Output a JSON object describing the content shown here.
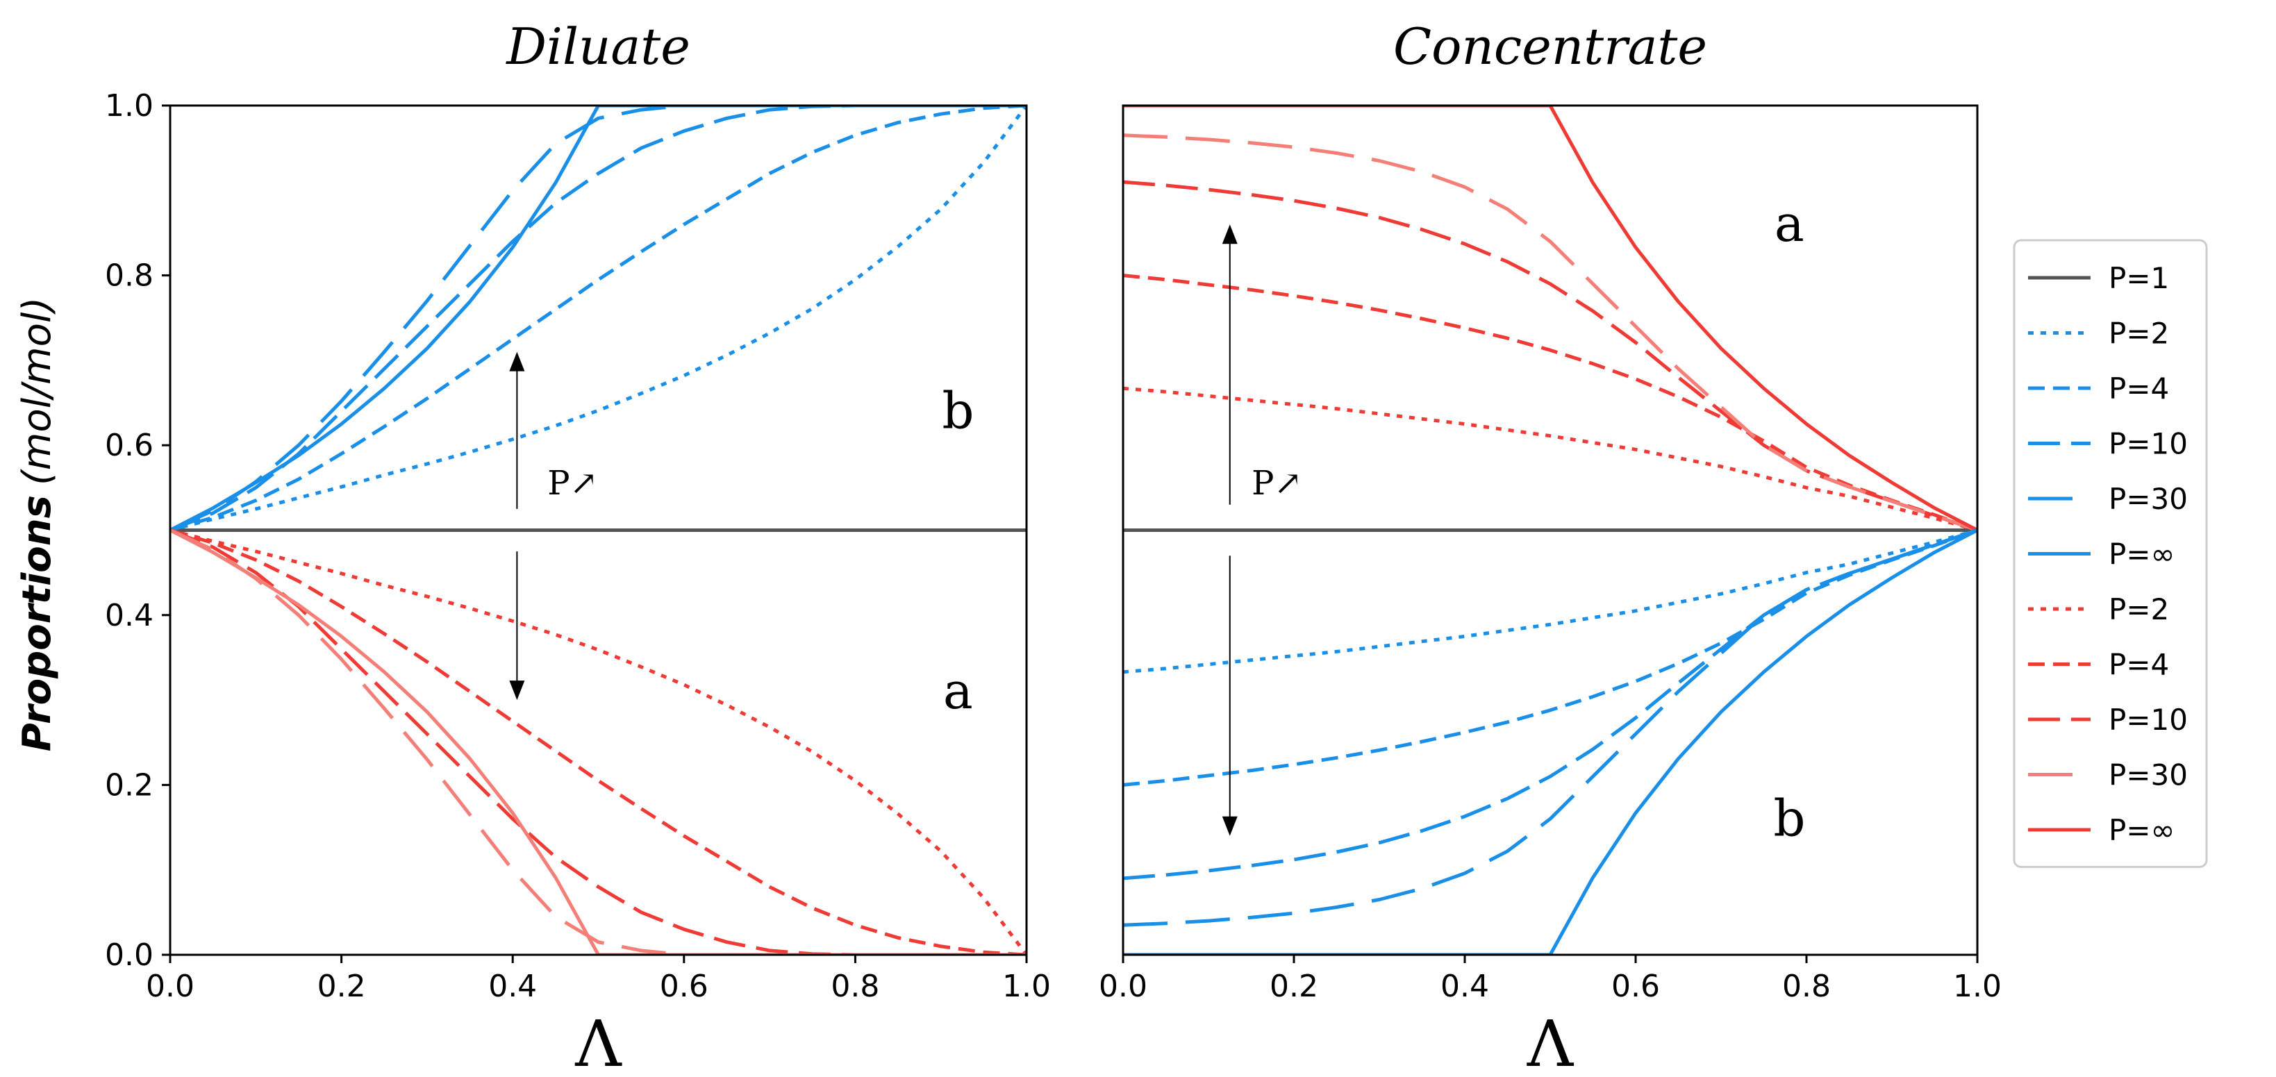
{
  "ylabel": {
    "main": "Proportions",
    "unit": "(mol/mol)"
  },
  "colors": {
    "black": "#555555",
    "blue": "#1a8fe8",
    "red": "#ee3b35",
    "redLight": "#f47f78",
    "axis": "#000000"
  },
  "chart_data": [
    {
      "type": "line",
      "id": "diluate",
      "title": "Diluate",
      "xlabel": "Λ",
      "ylabel": "Proportions (mol/mol)",
      "xlim": [
        0,
        1
      ],
      "ylim": [
        0,
        1
      ],
      "xticks": [
        "0.0",
        "0.2",
        "0.4",
        "0.6",
        "0.8",
        "1.0"
      ],
      "yticks": [
        "0.0",
        "0.2",
        "0.4",
        "0.6",
        "0.8",
        "1.0"
      ],
      "x": [
        0,
        0.05,
        0.1,
        0.15,
        0.2,
        0.25,
        0.3,
        0.35,
        0.4,
        0.45,
        0.5,
        0.55,
        0.6,
        0.65,
        0.7,
        0.75,
        0.8,
        0.85,
        0.9,
        0.95,
        1.0
      ],
      "series": [
        {
          "name": "P=1",
          "color": "black",
          "dash": "solid",
          "values": [
            0.5,
            0.5,
            0.5,
            0.5,
            0.5,
            0.5,
            0.5,
            0.5,
            0.5,
            0.5,
            0.5,
            0.5,
            0.5,
            0.5,
            0.5,
            0.5,
            0.5,
            0.5,
            0.5,
            0.5,
            0.5
          ]
        },
        {
          "name": "P=2 (b)",
          "color": "blue",
          "dash": "dot",
          "values": [
            0.5,
            0.513,
            0.525,
            0.538,
            0.551,
            0.565,
            0.578,
            0.592,
            0.607,
            0.623,
            0.641,
            0.661,
            0.682,
            0.706,
            0.732,
            0.761,
            0.795,
            0.834,
            0.878,
            0.933,
            1.0
          ]
        },
        {
          "name": "P=4 (b)",
          "color": "blue",
          "dash": "dash-short",
          "values": [
            0.5,
            0.515,
            0.535,
            0.56,
            0.59,
            0.622,
            0.655,
            0.69,
            0.725,
            0.76,
            0.795,
            0.828,
            0.86,
            0.89,
            0.92,
            0.945,
            0.965,
            0.98,
            0.99,
            0.997,
            1.0
          ]
        },
        {
          "name": "P=10 (b)",
          "color": "blue",
          "dash": "dash-long",
          "values": [
            0.5,
            0.52,
            0.55,
            0.59,
            0.64,
            0.69,
            0.74,
            0.79,
            0.84,
            0.885,
            0.92,
            0.95,
            0.97,
            0.985,
            0.995,
            0.999,
            1.0,
            1.0,
            1.0,
            1.0,
            1.0
          ]
        },
        {
          "name": "P=30 (b)",
          "color": "blue",
          "dash": "dash-xlong",
          "values": [
            0.5,
            0.523,
            0.557,
            0.6,
            0.652,
            0.71,
            0.77,
            0.835,
            0.9,
            0.955,
            0.985,
            0.995,
            1.0,
            1.0,
            1.0,
            1.0,
            1.0,
            1.0,
            1.0,
            1.0,
            1.0
          ]
        },
        {
          "name": "P=∞ (b)",
          "color": "blue",
          "dash": "solid",
          "values": [
            0.5,
            0.526,
            0.556,
            0.588,
            0.625,
            0.667,
            0.714,
            0.769,
            0.833,
            0.909,
            1.0,
            1.0,
            1.0,
            1.0,
            1.0,
            1.0,
            1.0,
            1.0,
            1.0,
            1.0,
            1.0
          ]
        },
        {
          "name": "P=2 (a)",
          "color": "red",
          "dash": "dot",
          "values": [
            0.5,
            0.487,
            0.475,
            0.462,
            0.449,
            0.435,
            0.422,
            0.408,
            0.393,
            0.377,
            0.359,
            0.339,
            0.318,
            0.294,
            0.268,
            0.239,
            0.205,
            0.166,
            0.122,
            0.067,
            0.0
          ]
        },
        {
          "name": "P=4 (a)",
          "color": "red",
          "dash": "dash-short",
          "values": [
            0.5,
            0.485,
            0.465,
            0.44,
            0.41,
            0.378,
            0.345,
            0.31,
            0.275,
            0.24,
            0.205,
            0.172,
            0.14,
            0.11,
            0.08,
            0.055,
            0.035,
            0.02,
            0.01,
            0.003,
            0.0
          ]
        },
        {
          "name": "P=10 (a)",
          "color": "red",
          "dash": "dash-long",
          "values": [
            0.5,
            0.48,
            0.45,
            0.41,
            0.36,
            0.31,
            0.26,
            0.21,
            0.16,
            0.115,
            0.08,
            0.05,
            0.03,
            0.015,
            0.005,
            0.001,
            0.0,
            0.0,
            0.0,
            0.0,
            0.0
          ]
        },
        {
          "name": "P=30 (a)",
          "color": "redLight",
          "dash": "dash-xlong",
          "values": [
            0.5,
            0.477,
            0.443,
            0.4,
            0.348,
            0.29,
            0.23,
            0.165,
            0.1,
            0.045,
            0.015,
            0.005,
            0.0,
            0.0,
            0.0,
            0.0,
            0.0,
            0.0,
            0.0,
            0.0,
            0.0
          ]
        },
        {
          "name": "P=∞ (a)",
          "color": "redLight",
          "dash": "solid",
          "values": [
            0.5,
            0.474,
            0.444,
            0.412,
            0.375,
            0.333,
            0.286,
            0.231,
            0.167,
            0.091,
            0.0,
            0.0,
            0.0,
            0.0,
            0.0,
            0.0,
            0.0,
            0.0,
            0.0,
            0.0,
            0.0
          ]
        }
      ],
      "annotations": [
        {
          "text": "b",
          "x": 0.92,
          "y": 0.64
        },
        {
          "text": "a",
          "x": 0.92,
          "y": 0.31
        },
        {
          "text": "P↗",
          "x": 0.47,
          "y": 0.555
        }
      ],
      "arrows": [
        {
          "x": 0.405,
          "y_from": 0.525,
          "y_to": 0.71
        },
        {
          "x": 0.405,
          "y_from": 0.475,
          "y_to": 0.3
        }
      ]
    },
    {
      "type": "line",
      "id": "concentrate",
      "title": "Concentrate",
      "xlabel": "Λ",
      "ylabel": "",
      "xlim": [
        0,
        1
      ],
      "ylim": [
        0,
        1
      ],
      "xticks": [
        "0.0",
        "0.2",
        "0.4",
        "0.6",
        "0.8",
        "1.0"
      ],
      "yticks": [],
      "x": [
        0,
        0.05,
        0.1,
        0.15,
        0.2,
        0.25,
        0.3,
        0.35,
        0.4,
        0.45,
        0.5,
        0.55,
        0.6,
        0.65,
        0.7,
        0.75,
        0.8,
        0.85,
        0.9,
        0.95,
        1.0
      ],
      "series": [
        {
          "name": "P=1",
          "color": "black",
          "dash": "solid",
          "values": [
            0.5,
            0.5,
            0.5,
            0.5,
            0.5,
            0.5,
            0.5,
            0.5,
            0.5,
            0.5,
            0.5,
            0.5,
            0.5,
            0.5,
            0.5,
            0.5,
            0.5,
            0.5,
            0.5,
            0.5,
            0.5
          ]
        },
        {
          "name": "P=2 (a)",
          "color": "red",
          "dash": "dot",
          "values": [
            0.667,
            0.663,
            0.658,
            0.653,
            0.648,
            0.643,
            0.637,
            0.631,
            0.625,
            0.618,
            0.611,
            0.603,
            0.595,
            0.585,
            0.575,
            0.563,
            0.55,
            0.54,
            0.527,
            0.514,
            0.5
          ]
        },
        {
          "name": "P=4 (a)",
          "color": "red",
          "dash": "dash-short",
          "values": [
            0.8,
            0.795,
            0.789,
            0.783,
            0.776,
            0.768,
            0.759,
            0.749,
            0.738,
            0.726,
            0.712,
            0.696,
            0.678,
            0.657,
            0.633,
            0.605,
            0.574,
            0.553,
            0.535,
            0.518,
            0.5
          ]
        },
        {
          "name": "P=10 (a)",
          "color": "red",
          "dash": "dash-long",
          "values": [
            0.91,
            0.906,
            0.901,
            0.895,
            0.888,
            0.879,
            0.868,
            0.854,
            0.837,
            0.816,
            0.79,
            0.758,
            0.721,
            0.68,
            0.64,
            0.6,
            0.57,
            0.551,
            0.534,
            0.517,
            0.5
          ]
        },
        {
          "name": "P=30 (a)",
          "color": "redLight",
          "dash": "dash-xlong",
          "values": [
            0.965,
            0.963,
            0.96,
            0.956,
            0.951,
            0.944,
            0.935,
            0.922,
            0.904,
            0.878,
            0.84,
            0.79,
            0.74,
            0.69,
            0.645,
            0.6,
            0.57,
            0.551,
            0.534,
            0.517,
            0.5
          ]
        },
        {
          "name": "P=∞ (a)",
          "color": "red",
          "dash": "solid",
          "values": [
            1.0,
            1.0,
            1.0,
            1.0,
            1.0,
            1.0,
            1.0,
            1.0,
            1.0,
            1.0,
            1.0,
            0.909,
            0.833,
            0.769,
            0.714,
            0.667,
            0.625,
            0.588,
            0.556,
            0.526,
            0.5
          ]
        },
        {
          "name": "P=2 (b)",
          "color": "blue",
          "dash": "dot",
          "values": [
            0.333,
            0.337,
            0.342,
            0.347,
            0.352,
            0.357,
            0.363,
            0.369,
            0.375,
            0.382,
            0.389,
            0.397,
            0.405,
            0.415,
            0.425,
            0.437,
            0.45,
            0.46,
            0.473,
            0.486,
            0.5
          ]
        },
        {
          "name": "P=4 (b)",
          "color": "blue",
          "dash": "dash-short",
          "values": [
            0.2,
            0.205,
            0.211,
            0.217,
            0.224,
            0.232,
            0.241,
            0.251,
            0.262,
            0.274,
            0.288,
            0.304,
            0.322,
            0.343,
            0.367,
            0.395,
            0.426,
            0.447,
            0.465,
            0.482,
            0.5
          ]
        },
        {
          "name": "P=10 (b)",
          "color": "blue",
          "dash": "dash-long",
          "values": [
            0.09,
            0.094,
            0.099,
            0.105,
            0.112,
            0.121,
            0.132,
            0.146,
            0.163,
            0.184,
            0.21,
            0.242,
            0.279,
            0.32,
            0.36,
            0.4,
            0.43,
            0.449,
            0.466,
            0.483,
            0.5
          ]
        },
        {
          "name": "P=30 (b)",
          "color": "blue",
          "dash": "dash-xlong",
          "values": [
            0.035,
            0.037,
            0.04,
            0.044,
            0.049,
            0.056,
            0.065,
            0.078,
            0.096,
            0.122,
            0.16,
            0.21,
            0.26,
            0.31,
            0.355,
            0.4,
            0.43,
            0.449,
            0.466,
            0.483,
            0.5
          ]
        },
        {
          "name": "P=∞ (b)",
          "color": "blue",
          "dash": "solid",
          "values": [
            0.0,
            0.0,
            0.0,
            0.0,
            0.0,
            0.0,
            0.0,
            0.0,
            0.0,
            0.0,
            0.0,
            0.091,
            0.167,
            0.231,
            0.286,
            0.333,
            0.375,
            0.412,
            0.444,
            0.474,
            0.5
          ]
        }
      ],
      "annotations": [
        {
          "text": "a",
          "x": 0.78,
          "y": 0.86
        },
        {
          "text": "b",
          "x": 0.78,
          "y": 0.16
        },
        {
          "text": "P↗",
          "x": 0.18,
          "y": 0.555
        }
      ],
      "arrows": [
        {
          "x": 0.125,
          "y_from": 0.53,
          "y_to": 0.86
        },
        {
          "x": 0.125,
          "y_from": 0.47,
          "y_to": 0.14
        }
      ]
    }
  ],
  "legend": {
    "placement": "right",
    "entries": [
      {
        "label": "P=1",
        "color": "black",
        "dash": "solid"
      },
      {
        "label": "P=2",
        "color": "blue",
        "dash": "dot"
      },
      {
        "label": "P=4",
        "color": "blue",
        "dash": "dash-short"
      },
      {
        "label": "P=10",
        "color": "blue",
        "dash": "dash-long"
      },
      {
        "label": "P=30",
        "color": "blue",
        "dash": "dash-xlong"
      },
      {
        "label": "P=∞",
        "color": "blue",
        "dash": "solid"
      },
      {
        "label": "P=2",
        "color": "red",
        "dash": "dot"
      },
      {
        "label": "P=4",
        "color": "red",
        "dash": "dash-short"
      },
      {
        "label": "P=10",
        "color": "red",
        "dash": "dash-long"
      },
      {
        "label": "P=30",
        "color": "redLight",
        "dash": "dash-xlong"
      },
      {
        "label": "P=∞",
        "color": "red",
        "dash": "solid"
      }
    ]
  }
}
